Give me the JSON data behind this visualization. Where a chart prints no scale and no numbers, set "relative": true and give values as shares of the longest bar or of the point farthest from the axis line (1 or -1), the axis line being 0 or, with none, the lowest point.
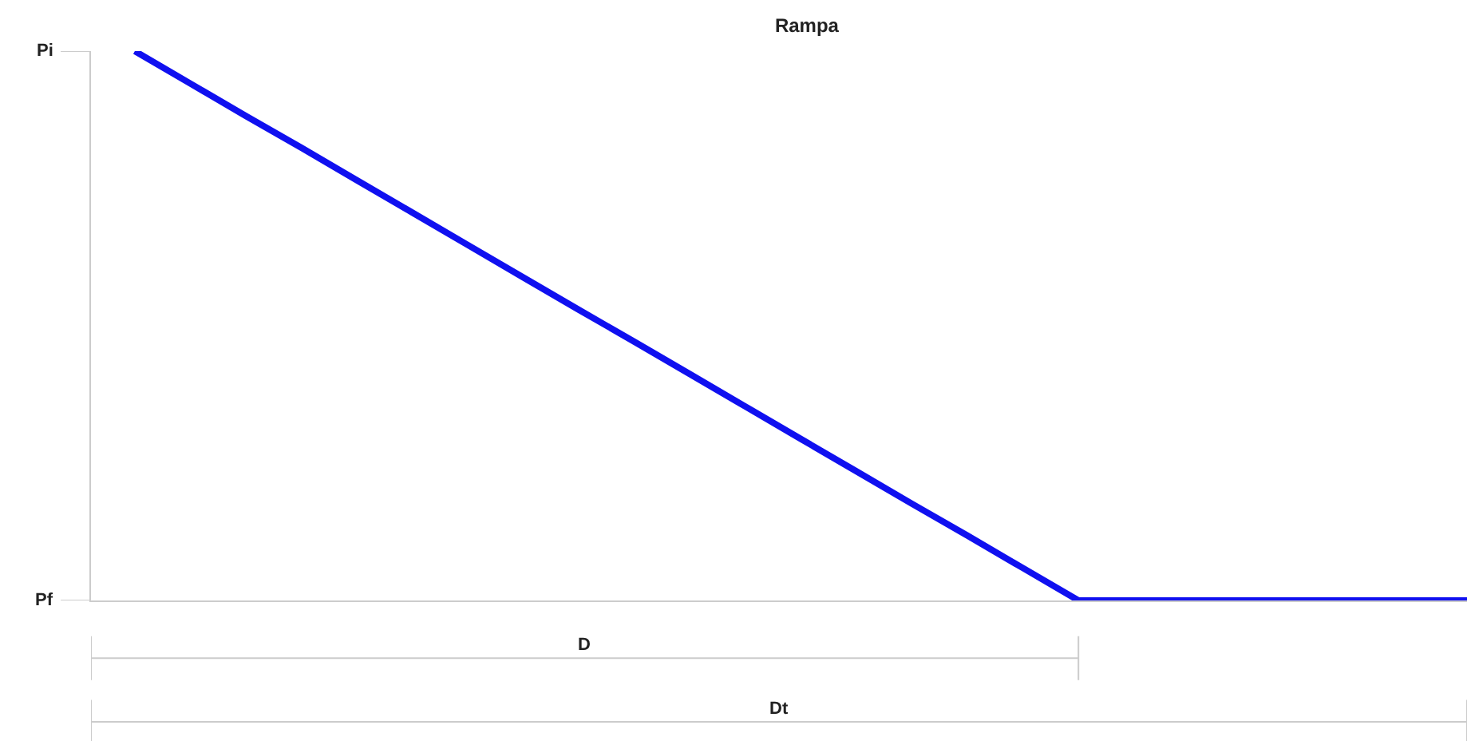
{
  "chart_data": {
    "type": "line",
    "title": "Rampa",
    "relative": true,
    "categories": [
      null,
      null,
      null,
      null,
      null,
      null,
      null,
      null,
      null,
      null,
      null,
      null,
      null,
      null,
      null,
      null,
      null,
      null,
      null,
      null,
      null,
      null,
      null,
      null,
      null
    ],
    "series": [
      {
        "color": "#1010f0",
        "values": [
          1,
          0.941,
          0.882,
          0.824,
          0.765,
          0.706,
          0.647,
          0.588,
          0.529,
          0.471,
          0.412,
          0.353,
          0.294,
          0.235,
          0.176,
          0.118,
          0.059,
          0,
          0,
          0,
          0,
          0,
          0,
          0,
          0
        ]
      }
    ],
    "ref_lines": [
      {
        "axis": "y",
        "value": 1,
        "label": "Pi",
        "color": "#cccccc"
      },
      {
        "axis": "y",
        "value": 0,
        "label": "Pf",
        "color": "#cccccc"
      }
    ],
    "annotations": [
      "D",
      "Dt"
    ],
    "marker": "none",
    "line_style": "solid"
  }
}
